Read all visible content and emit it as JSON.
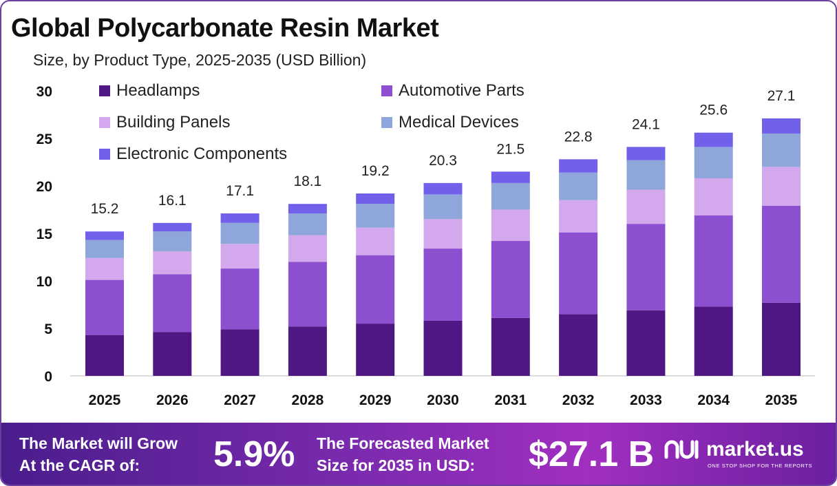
{
  "title": "Global Polycarbonate Resin Market",
  "subtitle": "Size, by Product Type, 2025-2035 (USD Billion)",
  "chart_data": {
    "type": "bar",
    "stacked": true,
    "categories": [
      "2025",
      "2026",
      "2027",
      "2028",
      "2029",
      "2030",
      "2031",
      "2032",
      "2033",
      "2034",
      "2035"
    ],
    "totals": [
      15.2,
      16.1,
      17.1,
      18.1,
      19.2,
      20.3,
      21.5,
      22.8,
      24.1,
      25.6,
      27.1
    ],
    "series": [
      {
        "name": "Headlamps",
        "color": "#4e1784",
        "values": [
          4.3,
          4.6,
          4.9,
          5.2,
          5.5,
          5.8,
          6.1,
          6.5,
          6.9,
          7.3,
          7.7
        ]
      },
      {
        "name": "Automotive Parts",
        "color": "#8b4fd0",
        "values": [
          5.8,
          6.1,
          6.4,
          6.8,
          7.2,
          7.6,
          8.1,
          8.6,
          9.1,
          9.6,
          10.2
        ]
      },
      {
        "name": "Building Panels",
        "color": "#d3a8ec",
        "values": [
          2.3,
          2.4,
          2.6,
          2.8,
          2.9,
          3.1,
          3.3,
          3.4,
          3.6,
          3.9,
          4.1
        ]
      },
      {
        "name": "Medical Devices",
        "color": "#8ea6da",
        "values": [
          1.9,
          2.1,
          2.2,
          2.3,
          2.5,
          2.6,
          2.8,
          2.9,
          3.1,
          3.3,
          3.5
        ]
      },
      {
        "name": "Electronic Components",
        "color": "#7060ea",
        "values": [
          0.9,
          0.9,
          1.0,
          1.0,
          1.1,
          1.2,
          1.2,
          1.4,
          1.4,
          1.5,
          1.6
        ]
      }
    ],
    "ylim": [
      0,
      30
    ],
    "yticks": [
      0,
      5,
      10,
      15,
      20,
      25,
      30
    ],
    "legend_position": "top-left",
    "grid": false
  },
  "footer": {
    "cagr_label_line1": "The Market will Grow",
    "cagr_label_line2": "At the CAGR of:",
    "cagr_value": "5.9%",
    "forecast_label_line1": "The Forecasted Market",
    "forecast_label_line2": "Size for 2035 in USD:",
    "forecast_value": "$27.1 B",
    "brand_name": "market.us",
    "brand_tagline": "ONE STOP SHOP FOR THE REPORTS"
  }
}
